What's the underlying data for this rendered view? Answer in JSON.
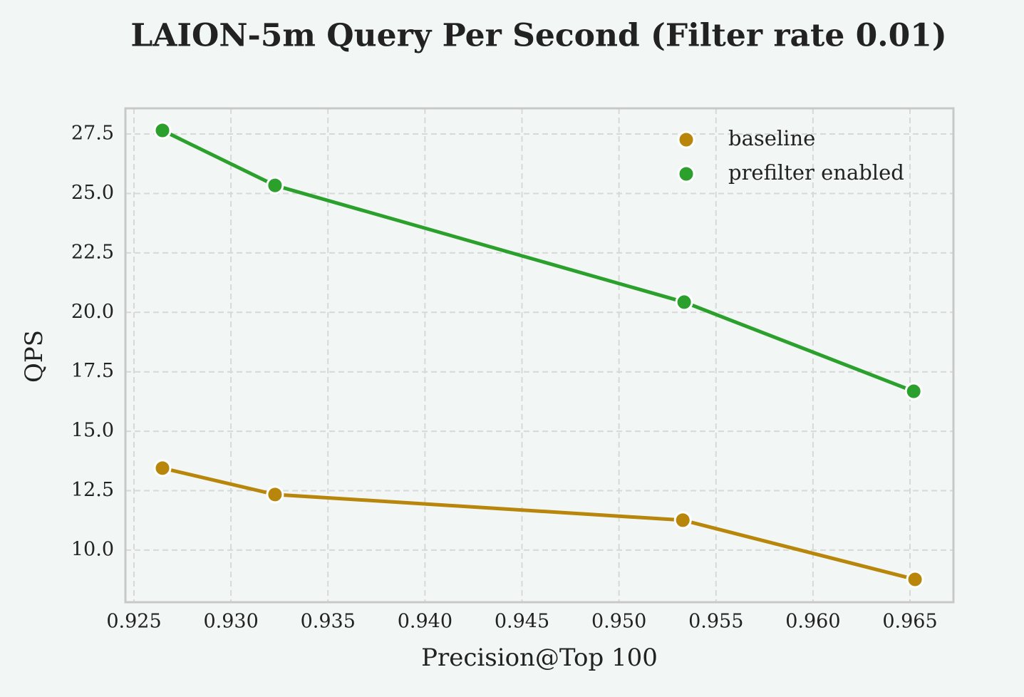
{
  "chart_data": {
    "type": "line",
    "title": "LAION-5m Query Per Second (Filter rate 0.01)",
    "x_label": "Precision@Top 100",
    "y_label": "QPS",
    "series": [
      {
        "name": "baseline",
        "color": "#b8860b",
        "x": [
          0.92647,
          0.93227,
          0.95329,
          0.96526
        ],
        "values": [
          13.45,
          12.34,
          11.26,
          8.77
        ]
      },
      {
        "name": "prefilter enabled",
        "color": "#2ca02c",
        "x": [
          0.92647,
          0.93227,
          0.95336,
          0.96519
        ],
        "values": [
          27.65,
          25.34,
          20.43,
          16.68
        ]
      }
    ],
    "xlim": [
      0.92456,
      0.96724
    ],
    "ylim": [
      7.81,
      28.58
    ],
    "xticks": [
      0.925,
      {
        "value": 0.93,
        "label": "0.930"
      },
      0.935,
      {
        "value": 0.94,
        "label": "0.940"
      },
      0.945,
      {
        "value": 0.95,
        "label": "0.950"
      },
      0.955,
      {
        "value": 0.96,
        "label": "0.960"
      },
      0.965
    ],
    "yticks": [
      {
        "value": 10,
        "label": "10.0"
      },
      12.5,
      {
        "value": 15,
        "label": "15.0"
      },
      17.5,
      {
        "value": 20,
        "label": "20.0"
      },
      22.5,
      {
        "value": 25,
        "label": "25.0"
      },
      27.5
    ],
    "grid": true,
    "legend": "upper right"
  }
}
